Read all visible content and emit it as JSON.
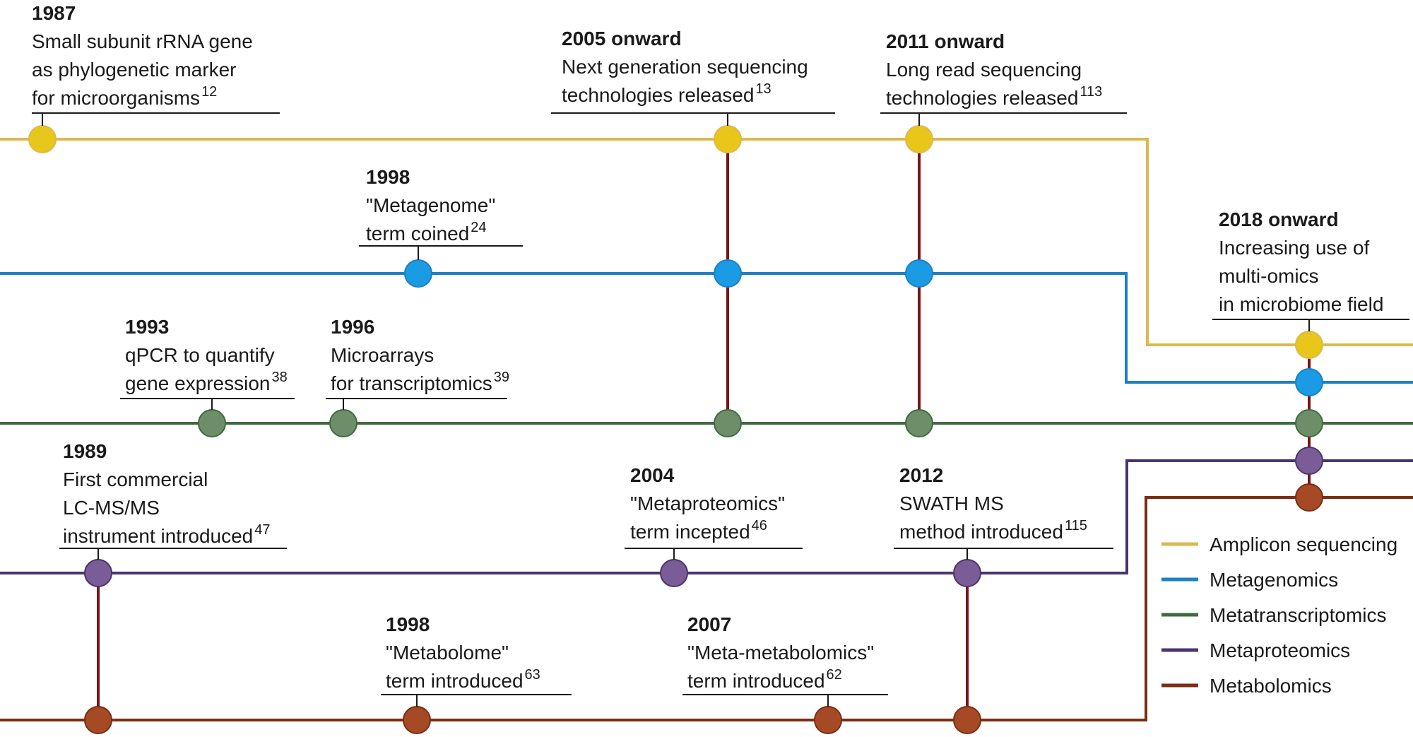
{
  "colors": {
    "amplicon": "#dcb94f",
    "metagenomics": "#1e7fc4",
    "metatranscriptomics": "#3f6b3f",
    "metaproteomics": "#4a3470",
    "metabolomics": "#7a2e12",
    "connector": "#7a1414",
    "node_amplicon": "#e8c61a",
    "node_metagenomics": "#1a9be3",
    "node_metatranscriptomics": "#6e8e6a",
    "node_metaproteomics": "#7a5c96",
    "node_metabolomics": "#a64a26"
  },
  "events": [
    {
      "year": "1987",
      "lines": [
        "Small subunit rRNA gene",
        "as phylogenetic marker",
        "for microorganisms"
      ],
      "ref": "12"
    },
    {
      "year": "2005 onward",
      "lines": [
        "Next generation sequencing",
        "technologies released"
      ],
      "ref": "13"
    },
    {
      "year": "2011 onward",
      "lines": [
        "Long read sequencing",
        "technologies released"
      ],
      "ref": "113"
    },
    {
      "year": "1998",
      "lines": [
        "\"Metagenome\"",
        "term coined"
      ],
      "ref": "24"
    },
    {
      "year": "2018 onward",
      "lines": [
        "Increasing use of",
        "multi-omics",
        "in microbiome field"
      ],
      "ref": ""
    },
    {
      "year": "1993",
      "lines": [
        "qPCR to quantify",
        "gene expression"
      ],
      "ref": "38"
    },
    {
      "year": "1996",
      "lines": [
        "Microarrays",
        "for transcriptomics"
      ],
      "ref": "39"
    },
    {
      "year": "1989",
      "lines": [
        "First commercial",
        "LC-MS/MS",
        "instrument introduced"
      ],
      "ref": "47"
    },
    {
      "year": "2004",
      "lines": [
        "\"Metaproteomics\"",
        "term incepted"
      ],
      "ref": "46"
    },
    {
      "year": "2012",
      "lines": [
        "SWATH MS",
        "method introduced"
      ],
      "ref": "115"
    },
    {
      "year": "1998",
      "lines": [
        "\"Metabolome\"",
        "term introduced"
      ],
      "ref": "63"
    },
    {
      "year": "2007",
      "lines": [
        "\"Meta-metabolomics\"",
        "term introduced"
      ],
      "ref": "62"
    }
  ],
  "legend": [
    {
      "label": "Amplicon sequencing",
      "color": "#dcb94f"
    },
    {
      "label": "Metagenomics",
      "color": "#1e7fc4"
    },
    {
      "label": "Metatranscriptomics",
      "color": "#3f6b3f"
    },
    {
      "label": "Metaproteomics",
      "color": "#4a3470"
    },
    {
      "label": "Metabolomics",
      "color": "#7a2e12"
    }
  ]
}
